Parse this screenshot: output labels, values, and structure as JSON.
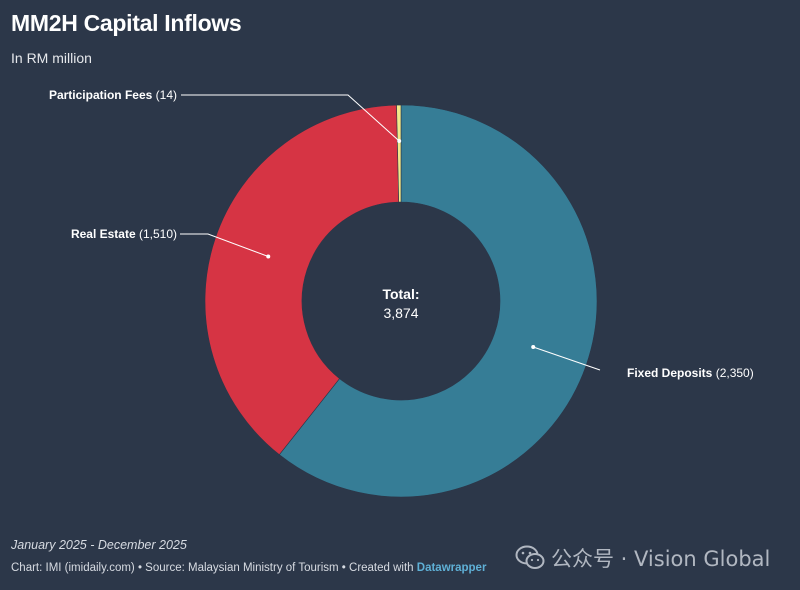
{
  "header": {
    "title": "MM2H Capital Inflows",
    "subtitle": "In RM million"
  },
  "chart_data": {
    "type": "pie",
    "variant": "donut",
    "slices": [
      {
        "label": "Fixed Deposits",
        "value": 2350,
        "value_label": "(2,350)",
        "color": "#367d96"
      },
      {
        "label": "Real Estate",
        "value": 1510,
        "value_label": "(1,510)",
        "color": "#d63444"
      },
      {
        "label": "Participation Fees",
        "value": 14,
        "value_label": "(14)",
        "color": "#f2e98a"
      }
    ],
    "center_label": "Total:",
    "center_value": "3,874"
  },
  "footer": {
    "date_range": "January 2025 - December 2025",
    "credits_prefix": "Chart: IMI (imidaily.com) • Source: Malaysian Ministry of Tourism • Created with ",
    "credits_tool": "Datawrapper"
  },
  "watermark": {
    "text": "公众号 · Vision Global",
    "icon": "wechat-icon"
  }
}
